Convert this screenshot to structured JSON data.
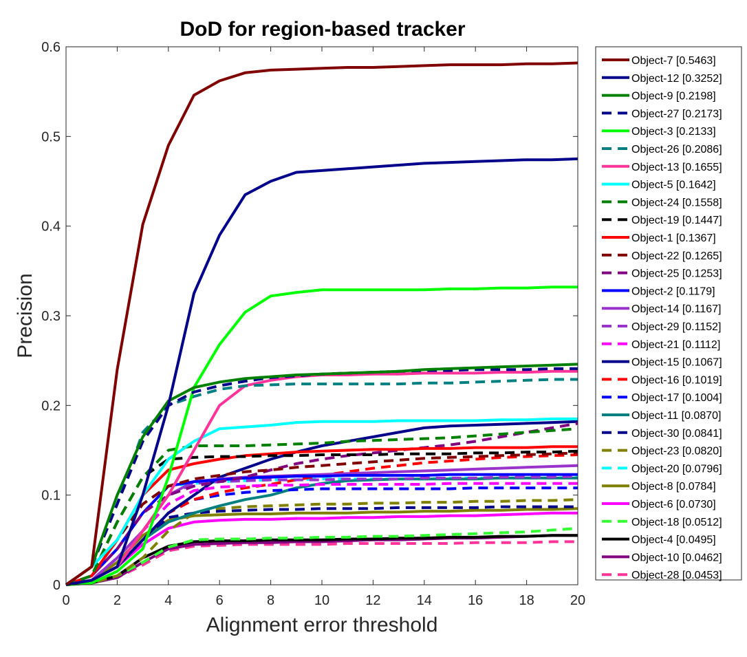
{
  "chart_data": {
    "type": "line",
    "title": "DoD for region-based tracker",
    "xlabel": "Alignment error threshold",
    "ylabel": "Precision",
    "xlim": [
      0,
      20
    ],
    "ylim": [
      0,
      0.6
    ],
    "xticks": [
      0,
      2,
      4,
      6,
      8,
      10,
      12,
      14,
      16,
      18,
      20
    ],
    "yticks": [
      0,
      0.1,
      0.2,
      0.3,
      0.4,
      0.5,
      0.6
    ],
    "xtick_labels": [
      "0",
      "2",
      "4",
      "6",
      "8",
      "10",
      "12",
      "14",
      "16",
      "18",
      "20"
    ],
    "ytick_labels": [
      "0",
      "0.1",
      "0.2",
      "0.3",
      "0.4",
      "0.5",
      "0.6"
    ],
    "grid": false,
    "legend_position": "outside-right",
    "x": [
      0,
      1,
      2,
      3,
      4,
      5,
      6,
      7,
      8,
      9,
      10,
      11,
      12,
      13,
      14,
      15,
      16,
      17,
      18,
      19,
      20
    ],
    "series": [
      {
        "name": "Object-7 [0.5463]",
        "color": "#800000",
        "style": "solid",
        "values": [
          0,
          0.02,
          0.24,
          0.402,
          0.49,
          0.546,
          0.562,
          0.571,
          0.574,
          0.575,
          0.576,
          0.577,
          0.577,
          0.578,
          0.579,
          0.58,
          0.58,
          0.58,
          0.581,
          0.581,
          0.582
        ]
      },
      {
        "name": "Object-12 [0.3252]",
        "color": "#00008b",
        "style": "solid",
        "values": [
          0,
          0.005,
          0.02,
          0.1,
          0.2,
          0.325,
          0.39,
          0.435,
          0.45,
          0.46,
          0.462,
          0.464,
          0.466,
          0.468,
          0.47,
          0.471,
          0.472,
          0.473,
          0.474,
          0.474,
          0.475
        ]
      },
      {
        "name": "Object-9 [0.2198]",
        "color": "#008000",
        "style": "solid",
        "values": [
          0,
          0.02,
          0.1,
          0.165,
          0.205,
          0.22,
          0.226,
          0.23,
          0.232,
          0.234,
          0.235,
          0.236,
          0.237,
          0.238,
          0.24,
          0.241,
          0.242,
          0.243,
          0.244,
          0.245,
          0.246
        ]
      },
      {
        "name": "Object-27 [0.2173]",
        "color": "#00008b",
        "style": "dashed",
        "values": [
          0,
          0.02,
          0.09,
          0.16,
          0.2,
          0.215,
          0.222,
          0.227,
          0.231,
          0.233,
          0.235,
          0.236,
          0.237,
          0.238,
          0.239,
          0.239,
          0.24,
          0.24,
          0.24,
          0.241,
          0.241
        ]
      },
      {
        "name": "Object-3 [0.2133]",
        "color": "#00ff00",
        "style": "solid",
        "values": [
          0,
          0.002,
          0.015,
          0.04,
          0.12,
          0.22,
          0.268,
          0.304,
          0.322,
          0.326,
          0.329,
          0.329,
          0.329,
          0.329,
          0.329,
          0.33,
          0.33,
          0.331,
          0.331,
          0.332,
          0.332
        ]
      },
      {
        "name": "Object-26 [0.2086]",
        "color": "#008080",
        "style": "dashed",
        "values": [
          0,
          0.02,
          0.09,
          0.17,
          0.2,
          0.21,
          0.218,
          0.222,
          0.223,
          0.224,
          0.224,
          0.224,
          0.224,
          0.224,
          0.225,
          0.225,
          0.226,
          0.227,
          0.228,
          0.229,
          0.229
        ]
      },
      {
        "name": "Object-13 [0.1655]",
        "color": "#ff3399",
        "style": "solid",
        "values": [
          0,
          0.005,
          0.02,
          0.06,
          0.1,
          0.15,
          0.2,
          0.222,
          0.228,
          0.232,
          0.234,
          0.234,
          0.235,
          0.235,
          0.236,
          0.236,
          0.236,
          0.237,
          0.237,
          0.238,
          0.238
        ]
      },
      {
        "name": "Object-5 [0.1642]",
        "color": "#00ffff",
        "style": "solid",
        "values": [
          0,
          0.02,
          0.05,
          0.1,
          0.14,
          0.16,
          0.174,
          0.176,
          0.178,
          0.181,
          0.182,
          0.182,
          0.182,
          0.183,
          0.183,
          0.183,
          0.183,
          0.184,
          0.184,
          0.185,
          0.185
        ]
      },
      {
        "name": "Object-24 [0.1558]",
        "color": "#008000",
        "style": "dashed",
        "values": [
          0,
          0.01,
          0.07,
          0.12,
          0.15,
          0.155,
          0.155,
          0.155,
          0.156,
          0.157,
          0.158,
          0.16,
          0.161,
          0.162,
          0.163,
          0.164,
          0.166,
          0.168,
          0.17,
          0.172,
          0.174
        ]
      },
      {
        "name": "Object-19 [0.1447]",
        "color": "#000000",
        "style": "dashed",
        "values": [
          0,
          0.01,
          0.07,
          0.12,
          0.14,
          0.142,
          0.143,
          0.143,
          0.144,
          0.144,
          0.145,
          0.145,
          0.145,
          0.146,
          0.146,
          0.146,
          0.147,
          0.147,
          0.148,
          0.148,
          0.149
        ]
      },
      {
        "name": "Object-1 [0.1367]",
        "color": "#ff0000",
        "style": "solid",
        "values": [
          0,
          0.01,
          0.05,
          0.1,
          0.128,
          0.135,
          0.14,
          0.144,
          0.146,
          0.148,
          0.149,
          0.15,
          0.151,
          0.151,
          0.152,
          0.152,
          0.153,
          0.153,
          0.153,
          0.154,
          0.154
        ]
      },
      {
        "name": "Object-22 [0.1265]",
        "color": "#800000",
        "style": "dashed",
        "values": [
          0,
          0.01,
          0.05,
          0.09,
          0.11,
          0.118,
          0.122,
          0.126,
          0.128,
          0.131,
          0.133,
          0.135,
          0.137,
          0.139,
          0.141,
          0.142,
          0.143,
          0.144,
          0.145,
          0.146,
          0.147
        ]
      },
      {
        "name": "Object-25 [0.1253]",
        "color": "#800080",
        "style": "dashed",
        "values": [
          0,
          0.01,
          0.04,
          0.08,
          0.1,
          0.11,
          0.115,
          0.12,
          0.128,
          0.135,
          0.14,
          0.144,
          0.147,
          0.15,
          0.153,
          0.156,
          0.16,
          0.165,
          0.17,
          0.175,
          0.18
        ]
      },
      {
        "name": "Object-2 [0.1179]",
        "color": "#0000ff",
        "style": "solid",
        "values": [
          0,
          0.01,
          0.04,
          0.08,
          0.11,
          0.115,
          0.117,
          0.119,
          0.12,
          0.121,
          0.121,
          0.122,
          0.122,
          0.122,
          0.122,
          0.123,
          0.123,
          0.123,
          0.123,
          0.123,
          0.123
        ]
      },
      {
        "name": "Object-14 [0.1167]",
        "color": "#9933cc",
        "style": "solid",
        "values": [
          0,
          0.005,
          0.03,
          0.06,
          0.1,
          0.115,
          0.118,
          0.12,
          0.121,
          0.122,
          0.123,
          0.124,
          0.125,
          0.126,
          0.127,
          0.128,
          0.129,
          0.13,
          0.131,
          0.132,
          0.133
        ]
      },
      {
        "name": "Object-29 [0.1152]",
        "color": "#9933cc",
        "style": "dashed",
        "values": [
          0,
          0.005,
          0.03,
          0.06,
          0.1,
          0.113,
          0.115,
          0.116,
          0.117,
          0.117,
          0.117,
          0.118,
          0.118,
          0.118,
          0.119,
          0.119,
          0.119,
          0.12,
          0.12,
          0.12,
          0.121
        ]
      },
      {
        "name": "Object-21 [0.1112]",
        "color": "#ff00ff",
        "style": "dashed",
        "values": [
          0,
          0.005,
          0.03,
          0.06,
          0.09,
          0.105,
          0.109,
          0.11,
          0.111,
          0.111,
          0.112,
          0.112,
          0.112,
          0.112,
          0.112,
          0.113,
          0.113,
          0.113,
          0.113,
          0.113,
          0.113
        ]
      },
      {
        "name": "Object-15 [0.1067]",
        "color": "#00008b",
        "style": "solid",
        "values": [
          0,
          0.005,
          0.02,
          0.05,
          0.08,
          0.1,
          0.12,
          0.13,
          0.14,
          0.148,
          0.155,
          0.16,
          0.165,
          0.17,
          0.175,
          0.177,
          0.178,
          0.179,
          0.18,
          0.181,
          0.182
        ]
      },
      {
        "name": "Object-16 [0.1019]",
        "color": "#ff0000",
        "style": "dashed",
        "values": [
          0,
          0.005,
          0.02,
          0.05,
          0.08,
          0.095,
          0.103,
          0.108,
          0.112,
          0.117,
          0.122,
          0.126,
          0.13,
          0.133,
          0.136,
          0.138,
          0.14,
          0.142,
          0.143,
          0.144,
          0.145
        ]
      },
      {
        "name": "Object-17 [0.1004]",
        "color": "#0000ff",
        "style": "dashed",
        "values": [
          0,
          0.005,
          0.02,
          0.05,
          0.08,
          0.095,
          0.1,
          0.103,
          0.105,
          0.106,
          0.107,
          0.107,
          0.107,
          0.107,
          0.107,
          0.107,
          0.108,
          0.108,
          0.108,
          0.108,
          0.108
        ]
      },
      {
        "name": "Object-11 [0.0870]",
        "color": "#008080",
        "style": "solid",
        "values": [
          0,
          0.005,
          0.02,
          0.05,
          0.07,
          0.08,
          0.088,
          0.095,
          0.1,
          0.108,
          0.113,
          0.116,
          0.117,
          0.118,
          0.118,
          0.118,
          0.118,
          0.119,
          0.119,
          0.119,
          0.119
        ]
      },
      {
        "name": "Object-30 [0.0841]",
        "color": "#00008b",
        "style": "dashed",
        "values": [
          0,
          0.005,
          0.02,
          0.05,
          0.075,
          0.08,
          0.082,
          0.083,
          0.084,
          0.084,
          0.085,
          0.085,
          0.085,
          0.086,
          0.086,
          0.086,
          0.086,
          0.087,
          0.087,
          0.087,
          0.087
        ]
      },
      {
        "name": "Object-23 [0.0820]",
        "color": "#808000",
        "style": "dashed",
        "values": [
          0,
          0.002,
          0.01,
          0.03,
          0.06,
          0.08,
          0.085,
          0.087,
          0.088,
          0.089,
          0.09,
          0.09,
          0.091,
          0.091,
          0.092,
          0.092,
          0.093,
          0.093,
          0.094,
          0.094,
          0.095
        ]
      },
      {
        "name": "Object-20 [0.0796]",
        "color": "#00ffff",
        "style": "dashed",
        "values": [
          0,
          0.01,
          0.05,
          0.09,
          0.11,
          0.113,
          0.115,
          0.116,
          0.117,
          0.117,
          0.118,
          0.118,
          0.118,
          0.118,
          0.118,
          0.119,
          0.119,
          0.119,
          0.119,
          0.119,
          0.12
        ]
      },
      {
        "name": "Object-8 [0.0784]",
        "color": "#808000",
        "style": "solid",
        "values": [
          0,
          0.005,
          0.025,
          0.055,
          0.072,
          0.077,
          0.078,
          0.079,
          0.079,
          0.08,
          0.08,
          0.08,
          0.081,
          0.081,
          0.082,
          0.082,
          0.083,
          0.083,
          0.084,
          0.084,
          0.085
        ]
      },
      {
        "name": "Object-6 [0.0730]",
        "color": "#ff00ff",
        "style": "solid",
        "values": [
          0,
          0.005,
          0.02,
          0.045,
          0.063,
          0.07,
          0.072,
          0.073,
          0.073,
          0.074,
          0.074,
          0.075,
          0.075,
          0.076,
          0.076,
          0.077,
          0.077,
          0.078,
          0.079,
          0.08,
          0.08
        ]
      },
      {
        "name": "Object-18 [0.0512]",
        "color": "#33ff33",
        "style": "dashed",
        "values": [
          0,
          0.002,
          0.01,
          0.025,
          0.042,
          0.05,
          0.051,
          0.051,
          0.052,
          0.052,
          0.053,
          0.053,
          0.054,
          0.054,
          0.055,
          0.056,
          0.057,
          0.058,
          0.059,
          0.061,
          0.063
        ]
      },
      {
        "name": "Object-4 [0.0495]",
        "color": "#000000",
        "style": "solid",
        "values": [
          0,
          0.002,
          0.01,
          0.03,
          0.043,
          0.048,
          0.049,
          0.049,
          0.05,
          0.05,
          0.05,
          0.051,
          0.051,
          0.052,
          0.052,
          0.053,
          0.053,
          0.054,
          0.054,
          0.055,
          0.055
        ]
      },
      {
        "name": "Object-10 [0.0462]",
        "color": "#800080",
        "style": "solid",
        "values": [
          0,
          0.002,
          0.008,
          0.025,
          0.04,
          0.045,
          0.046,
          0.047,
          0.047,
          0.048,
          0.048,
          0.049,
          0.05,
          0.05,
          0.051,
          0.052,
          0.052,
          0.053,
          0.054,
          0.055,
          0.055
        ]
      },
      {
        "name": "Object-28 [0.0453]",
        "color": "#ff3399",
        "style": "dashed",
        "values": [
          0,
          0.002,
          0.008,
          0.022,
          0.038,
          0.043,
          0.044,
          0.045,
          0.045,
          0.045,
          0.045,
          0.046,
          0.046,
          0.046,
          0.046,
          0.046,
          0.047,
          0.047,
          0.047,
          0.048,
          0.048
        ]
      }
    ]
  }
}
